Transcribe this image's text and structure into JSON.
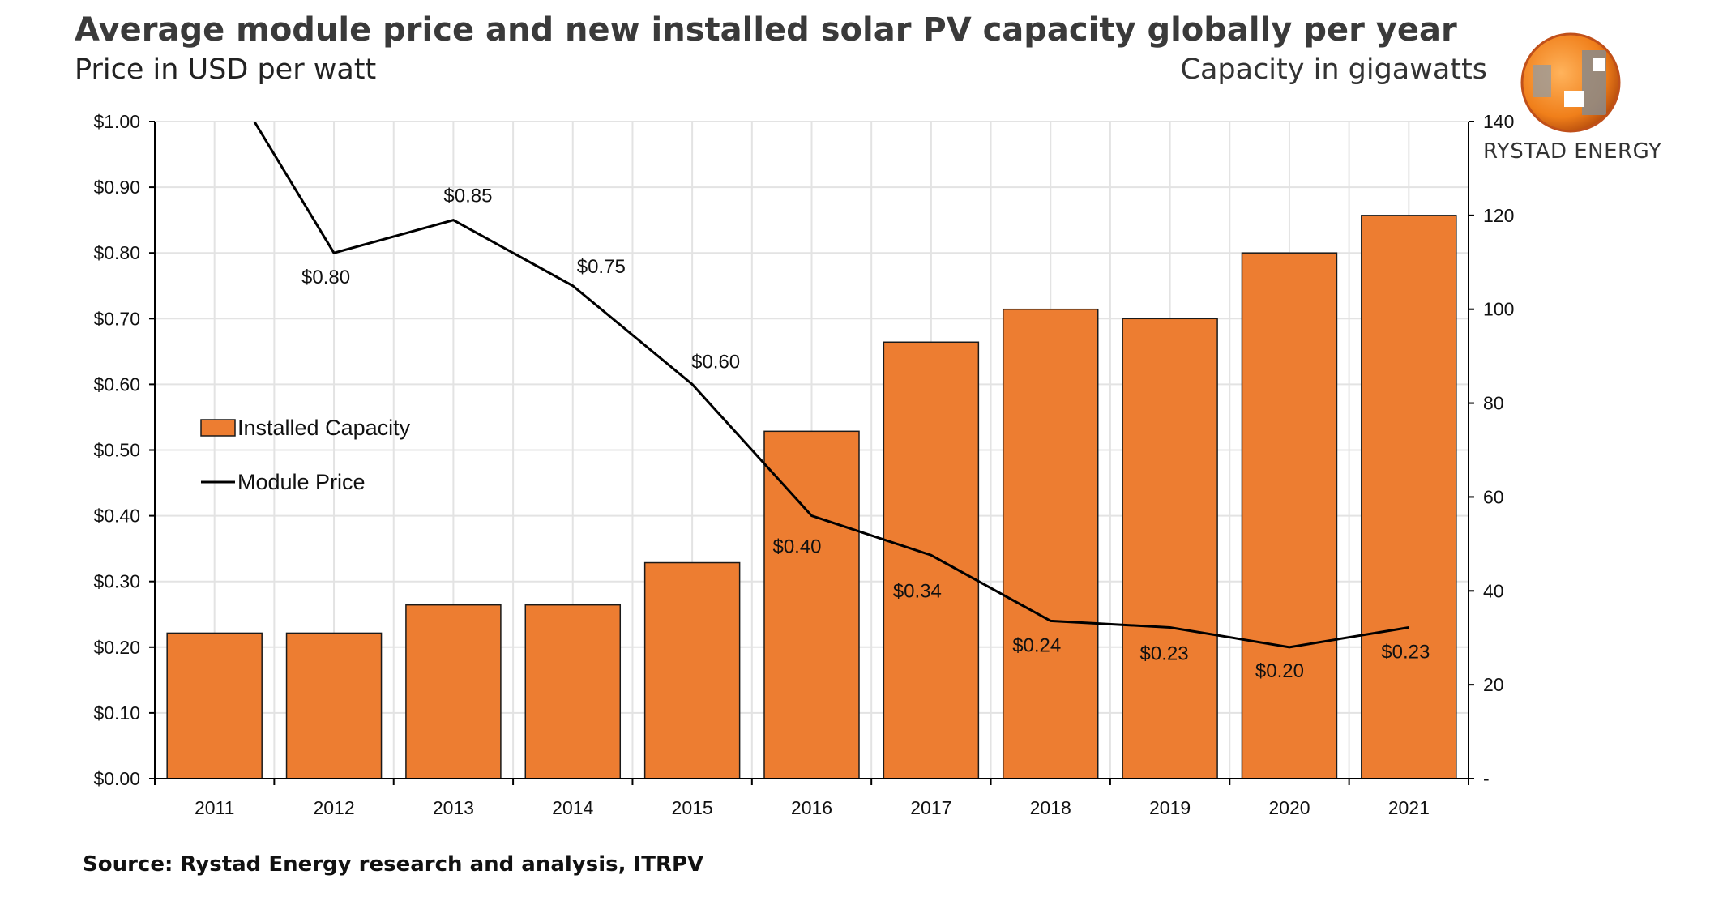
{
  "header": {
    "title": "Average module price and new installed solar PV capacity globally per year",
    "subtitle_left": "Price in USD per watt",
    "subtitle_right": "Capacity in gigawatts"
  },
  "logo": {
    "text": "RYSTAD ENERGY"
  },
  "source": "Source: Rystad Energy research and analysis, ITRPV",
  "colors": {
    "bar": "#ED7D31",
    "line": "#000000",
    "grid": "#e3e3e3"
  },
  "chart_data": {
    "type": "bar+line",
    "categories": [
      "2011",
      "2012",
      "2013",
      "2014",
      "2015",
      "2016",
      "2017",
      "2018",
      "2019",
      "2020",
      "2021"
    ],
    "series": [
      {
        "name": "Installed Capacity",
        "type": "bar",
        "axis": "right",
        "values": [
          31,
          31,
          37,
          37,
          46,
          74,
          93,
          100,
          98,
          112,
          120
        ]
      },
      {
        "name": "Module Price",
        "type": "line",
        "axis": "left",
        "values": [
          1.1,
          0.8,
          0.85,
          0.75,
          0.6,
          0.4,
          0.34,
          0.24,
          0.23,
          0.2,
          0.23
        ],
        "data_labels": [
          null,
          "$0.80",
          "$0.85",
          "$0.75",
          "$0.60",
          "$0.40",
          "$0.34",
          "$0.24",
          "$0.23",
          "$0.20",
          "$0.23"
        ]
      }
    ],
    "y_left": {
      "label": "Price in USD per watt",
      "ylim": [
        0,
        1.0
      ],
      "ticks": [
        "$0.00",
        "$0.10",
        "$0.20",
        "$0.30",
        "$0.40",
        "$0.50",
        "$0.60",
        "$0.70",
        "$0.80",
        "$0.90",
        "$1.00"
      ]
    },
    "y_right": {
      "label": "Capacity in gigawatts",
      "ylim": [
        0,
        140
      ],
      "ticks": [
        "-",
        "20",
        "40",
        "60",
        "80",
        "100",
        "120",
        "140"
      ]
    },
    "grid": true,
    "legend": {
      "placement": "left-middle",
      "entries": [
        "Installed Capacity",
        "Module Price"
      ]
    }
  }
}
